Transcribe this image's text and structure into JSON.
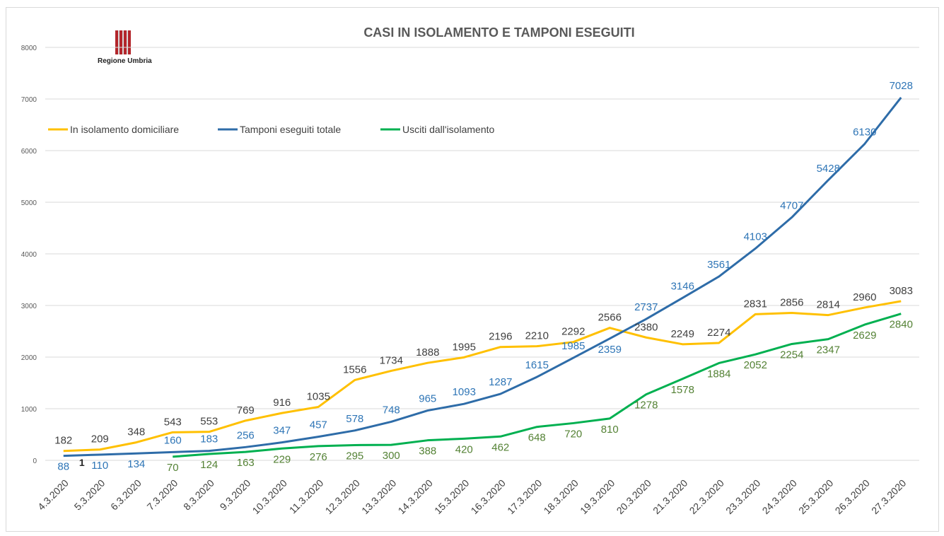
{
  "logo": {
    "text": "Regione Umbria"
  },
  "chart_data": {
    "type": "line",
    "title": "CASI IN ISOLAMENTO E TAMPONI ESEGUITI",
    "xlabel": "",
    "ylabel": "",
    "ylim": [
      0,
      8000
    ],
    "yticks": [
      "0",
      "1000",
      "2000",
      "3000",
      "4000",
      "5000",
      "6000",
      "7000",
      "8000"
    ],
    "grid": true,
    "legend_position": "top-left",
    "categories": [
      "4.3.2020",
      "5.3.2020",
      "6.3.2020",
      "7.3.2020",
      "8.3.2020",
      "9.3.2020",
      "10.3.2020",
      "11.3.2020",
      "12.3.2020",
      "13.3.2020",
      "14.3.2020",
      "15.3.2020",
      "16.3.2020",
      "17.3.2020",
      "18.3.2020",
      "19.3.2020",
      "20.3.2020",
      "21.3.2020",
      "22.3.2020",
      "23.3.2020",
      "24.3.2020",
      "25.3.2020",
      "26.3.2020",
      "27.3.2020"
    ],
    "series": [
      {
        "name": "In isolamento domiciliare",
        "color": "#ffc000",
        "label_color": "#404040",
        "values": [
          182,
          209,
          348,
          543,
          553,
          769,
          916,
          1035,
          1556,
          1734,
          1888,
          1995,
          2196,
          2210,
          2292,
          2566,
          2380,
          2249,
          2274,
          2831,
          2856,
          2814,
          2960,
          3083
        ]
      },
      {
        "name": "Tamponi eseguiti totale",
        "color": "#2e6ca8",
        "label_color": "#2e75b6",
        "values": [
          88,
          110,
          134,
          160,
          183,
          256,
          347,
          457,
          578,
          748,
          965,
          1093,
          1287,
          1615,
          1985,
          2359,
          2737,
          3146,
          3561,
          4103,
          4707,
          5428,
          6130,
          7028
        ]
      },
      {
        "name": "Usciti dall'isolamento",
        "color": "#00b050",
        "label_color": "#548235",
        "values": [
          null,
          null,
          null,
          70,
          124,
          163,
          229,
          276,
          295,
          300,
          388,
          420,
          462,
          648,
          720,
          810,
          1278,
          1578,
          1884,
          2052,
          2254,
          2347,
          2629,
          2840
        ]
      }
    ],
    "annotations": [
      {
        "text": "1",
        "category": "4.3.2020"
      }
    ]
  }
}
